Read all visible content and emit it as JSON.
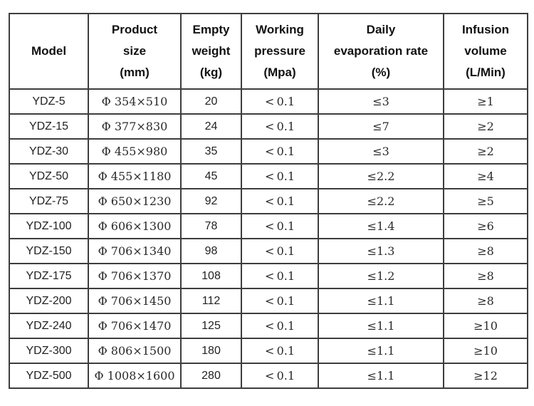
{
  "table": {
    "name": "cryogenic-container-specifications",
    "columns": [
      {
        "key": "model",
        "style": "sans",
        "lines": [
          "Model"
        ]
      },
      {
        "key": "product-size",
        "style": "serif",
        "lines": [
          "Product",
          "size",
          "(mm)"
        ]
      },
      {
        "key": "empty-weight",
        "style": "sans",
        "lines": [
          "Empty",
          "weight",
          "(kg)"
        ]
      },
      {
        "key": "working-pressure",
        "style": "serif",
        "lines": [
          "Working",
          "pressure",
          "(Mpa)"
        ]
      },
      {
        "key": "evaporation-rate",
        "style": "serif",
        "lines": [
          "Daily",
          "evaporation rate",
          "(%)"
        ]
      },
      {
        "key": "infusion-volume",
        "style": "serif",
        "lines": [
          "Infusion",
          "volume",
          "(L/Min)"
        ]
      }
    ],
    "rows": [
      [
        "YDZ-5",
        "Φ 354×510",
        "20",
        "< 0.1",
        "≤3",
        "≥1"
      ],
      [
        "YDZ-15",
        "Φ 377×830",
        "24",
        "< 0.1",
        "≤7",
        "≥2"
      ],
      [
        "YDZ-30",
        "Φ 455×980",
        "35",
        "< 0.1",
        "≤3",
        "≥2"
      ],
      [
        "YDZ-50",
        "Φ 455×1180",
        "45",
        "< 0.1",
        "≤2.2",
        "≥4"
      ],
      [
        "YDZ-75",
        "Φ 650×1230",
        "92",
        "< 0.1",
        "≤2.2",
        "≥5"
      ],
      [
        "YDZ-100",
        "Φ 606×1300",
        "78",
        "< 0.1",
        "≤1.4",
        "≥6"
      ],
      [
        "YDZ-150",
        "Φ 706×1340",
        "98",
        "< 0.1",
        "≤1.3",
        "≥8"
      ],
      [
        "YDZ-175",
        "Φ 706×1370",
        "108",
        "< 0.1",
        "≤1.2",
        "≥8"
      ],
      [
        "YDZ-200",
        "Φ 706×1450",
        "112",
        "< 0.1",
        "≤1.1",
        "≥8"
      ],
      [
        "YDZ-240",
        "Φ 706×1470",
        "125",
        "< 0.1",
        "≤1.1",
        "≥10"
      ],
      [
        "YDZ-300",
        "Φ 806×1500",
        "180",
        "< 0.1",
        "≤1.1",
        "≥10"
      ],
      [
        "YDZ-500",
        "Φ 1008×1600",
        "280",
        "< 0.1",
        "≤1.1",
        "≥12"
      ]
    ],
    "border_color": "#3d3d3d",
    "header_text_color": "#111111",
    "cell_text_color": "#222222"
  }
}
